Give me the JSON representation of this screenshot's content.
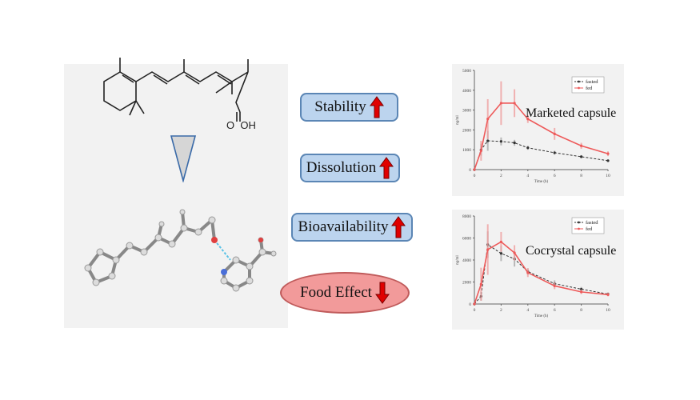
{
  "colors": {
    "panel": "#f2f2f2",
    "pill_fill": "#bcd4ee",
    "pill_border": "#5b86b5",
    "food_fill": "#f29a9a",
    "arrow_red": "#e00000",
    "fasted": "#333333",
    "fed": "#ee5a5a"
  },
  "molecule": {
    "acid_label": "O  OH"
  },
  "properties": [
    {
      "label": "Stability",
      "direction": "up",
      "icon": "up-arrow-icon"
    },
    {
      "label": "Dissolution",
      "direction": "up",
      "icon": "up-arrow-icon"
    },
    {
      "label": "Bioavailability",
      "direction": "up",
      "icon": "up-arrow-icon"
    },
    {
      "label": "Food Effect",
      "direction": "down",
      "icon": "down-arrow-icon"
    }
  ],
  "chart_data": [
    {
      "type": "line",
      "title": "Marketed capsule",
      "xlabel": "Time (h)",
      "ylabel": "ng/ml",
      "x_ticks": [
        0,
        2,
        4,
        6,
        8,
        10
      ],
      "y_ticks": [
        0,
        1000,
        2000,
        3000,
        4000,
        5000
      ],
      "xlim": [
        0,
        10
      ],
      "ylim": [
        0,
        5000
      ],
      "legend_position": "top-right",
      "x": [
        0,
        0.5,
        1,
        2,
        3,
        4,
        6,
        8,
        10
      ],
      "series": [
        {
          "name": "fasted",
          "color": "#333333",
          "values": [
            0,
            1000,
            1450,
            1420,
            1350,
            1100,
            850,
            650,
            450
          ],
          "errors": [
            0,
            300,
            500,
            200,
            150,
            100,
            100,
            80,
            60
          ]
        },
        {
          "name": "fed",
          "color": "#ee5a5a",
          "values": [
            0,
            950,
            2550,
            3350,
            3350,
            2550,
            1800,
            1200,
            800
          ],
          "errors": [
            0,
            500,
            1000,
            1100,
            700,
            200,
            300,
            150,
            120
          ]
        }
      ]
    },
    {
      "type": "line",
      "title": "Cocrystal capsule",
      "xlabel": "Time (h)",
      "ylabel": "ng/ml",
      "x_ticks": [
        0,
        2,
        4,
        6,
        8,
        10
      ],
      "y_ticks": [
        0,
        2000,
        4000,
        6000,
        8000
      ],
      "xlim": [
        0,
        10
      ],
      "ylim": [
        0,
        8000
      ],
      "legend_position": "top-right",
      "x": [
        0,
        0.5,
        1,
        2,
        3,
        4,
        6,
        8,
        10
      ],
      "series": [
        {
          "name": "fasted",
          "color": "#333333",
          "values": [
            0,
            700,
            5400,
            4600,
            4100,
            2950,
            1850,
            1350,
            900
          ],
          "errors": [
            0,
            400,
            1200,
            700,
            700,
            300,
            300,
            200,
            150
          ]
        },
        {
          "name": "fed",
          "color": "#ee5a5a",
          "values": [
            0,
            1800,
            4950,
            5650,
            4650,
            2850,
            1650,
            1100,
            850
          ],
          "errors": [
            0,
            1500,
            2300,
            900,
            700,
            400,
            300,
            200,
            150
          ]
        }
      ]
    }
  ]
}
